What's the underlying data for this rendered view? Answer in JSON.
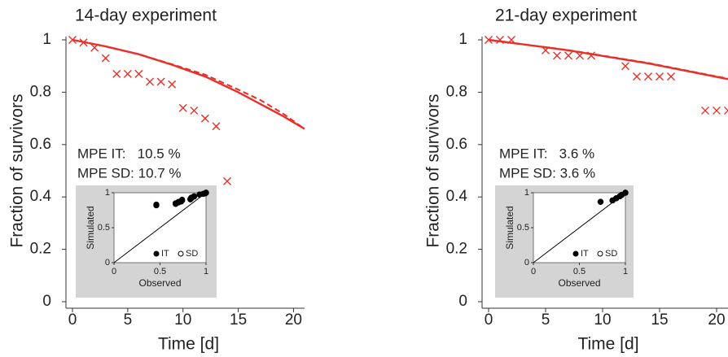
{
  "chart_data": [
    {
      "type": "line",
      "title": "14-day experiment",
      "xlabel": "Time [d]",
      "ylabel": "Fraction of survivors",
      "xlim": [
        0,
        21
      ],
      "ylim": [
        0,
        1
      ],
      "xticks": [
        0,
        5,
        10,
        15,
        20
      ],
      "yticks": [
        0,
        0.2,
        0.4,
        0.6,
        0.8,
        1
      ],
      "series": [
        {
          "type": "scatter",
          "marker": "x",
          "color": "#e8302a",
          "x": [
            0,
            1,
            2,
            3,
            4,
            5,
            6,
            7,
            8,
            9,
            10,
            11,
            12,
            13,
            14
          ],
          "values": [
            1.0,
            0.99,
            0.97,
            0.93,
            0.87,
            0.87,
            0.87,
            0.84,
            0.84,
            0.83,
            0.74,
            0.73,
            0.7,
            0.67,
            0.46
          ]
        },
        {
          "type": "line",
          "dash": false,
          "color": "#e8302a",
          "x": [
            0,
            3,
            6,
            9,
            12,
            15,
            17,
            19,
            21
          ],
          "values": [
            1,
            0.975,
            0.945,
            0.905,
            0.86,
            0.8,
            0.755,
            0.71,
            0.66
          ]
        },
        {
          "type": "line",
          "dash": true,
          "color": "#e8302a",
          "x": [
            0,
            3,
            6,
            9,
            12,
            15,
            17,
            19,
            21
          ],
          "values": [
            1,
            0.975,
            0.945,
            0.907,
            0.867,
            0.81,
            0.77,
            0.72,
            0.66
          ]
        }
      ],
      "annotations": [
        "MPE IT:   10.5 %",
        "MPE SD: 10.7 %"
      ],
      "inset": {
        "type": "scatter",
        "xlabel": "Observed",
        "ylabel": "Simulated",
        "xlim": [
          0,
          1
        ],
        "ylim": [
          0,
          1
        ],
        "xticks": [
          0,
          0.5,
          1
        ],
        "yticks": [
          0,
          0.5,
          1
        ],
        "background": "#d4d4d4",
        "legend": "lower right",
        "series": [
          {
            "name": "SD",
            "marker": "open",
            "color": "#000000",
            "x": [
              0.46,
              0.67,
              0.7,
              0.73,
              0.74,
              0.83,
              0.84,
              0.87,
              0.93,
              0.97,
              0.99,
              1.0
            ],
            "values": [
              0.83,
              0.85,
              0.87,
              0.88,
              0.9,
              0.91,
              0.93,
              0.95,
              0.975,
              0.985,
              0.99,
              1.0
            ]
          },
          {
            "name": "IT",
            "marker": "filled",
            "color": "#000000",
            "x": [
              0.46,
              0.67,
              0.7,
              0.73,
              0.74,
              0.83,
              0.84,
              0.87,
              0.93,
              0.97,
              0.99,
              1.0
            ],
            "values": [
              0.82,
              0.84,
              0.86,
              0.875,
              0.89,
              0.905,
              0.92,
              0.945,
              0.975,
              0.983,
              0.99,
              1.0
            ]
          }
        ]
      }
    },
    {
      "type": "line",
      "title": "21-day experiment",
      "xlabel": "Time [d]",
      "ylabel": "Fraction of survivors",
      "xlim": [
        0,
        21
      ],
      "ylim": [
        0,
        1
      ],
      "xticks": [
        0,
        5,
        10,
        15,
        20
      ],
      "yticks": [
        0,
        0.2,
        0.4,
        0.6,
        0.8,
        1
      ],
      "series": [
        {
          "type": "scatter",
          "marker": "x",
          "color": "#e8302a",
          "x": [
            0,
            1,
            2,
            5,
            6,
            7,
            8,
            9,
            12,
            13,
            14,
            15,
            16,
            19,
            20,
            21
          ],
          "values": [
            1,
            1,
            1,
            0.96,
            0.94,
            0.94,
            0.94,
            0.94,
            0.9,
            0.86,
            0.86,
            0.86,
            0.86,
            0.73,
            0.73,
            0.73
          ]
        },
        {
          "type": "line",
          "dash": false,
          "color": "#e8302a",
          "x": [
            0,
            7,
            14,
            21
          ],
          "values": [
            1,
            0.96,
            0.91,
            0.85
          ]
        },
        {
          "type": "line",
          "dash": true,
          "color": "#e8302a",
          "x": [
            0,
            7,
            14,
            21
          ],
          "values": [
            1,
            0.961,
            0.912,
            0.852
          ]
        }
      ],
      "annotations": [
        "MPE IT:   3.6 %",
        "MPE SD: 3.6 %"
      ],
      "inset": {
        "type": "scatter",
        "xlabel": "Observed",
        "ylabel": "Simulated",
        "xlim": [
          0,
          1
        ],
        "ylim": [
          0,
          1
        ],
        "xticks": [
          0,
          0.5,
          1
        ],
        "yticks": [
          0,
          0.5,
          1
        ],
        "background": "#d4d4d4",
        "legend": "lower right",
        "series": [
          {
            "name": "SD",
            "marker": "open",
            "color": "#000000",
            "x": [
              0.73,
              0.86,
              0.9,
              0.94,
              0.96,
              1.0
            ],
            "values": [
              0.87,
              0.89,
              0.92,
              0.95,
              0.97,
              1.0
            ]
          },
          {
            "name": "IT",
            "marker": "filled",
            "color": "#000000",
            "x": [
              0.73,
              0.86,
              0.9,
              0.94,
              0.96,
              1.0
            ],
            "values": [
              0.87,
              0.89,
              0.92,
              0.95,
              0.97,
              1.0
            ]
          }
        ]
      }
    }
  ]
}
